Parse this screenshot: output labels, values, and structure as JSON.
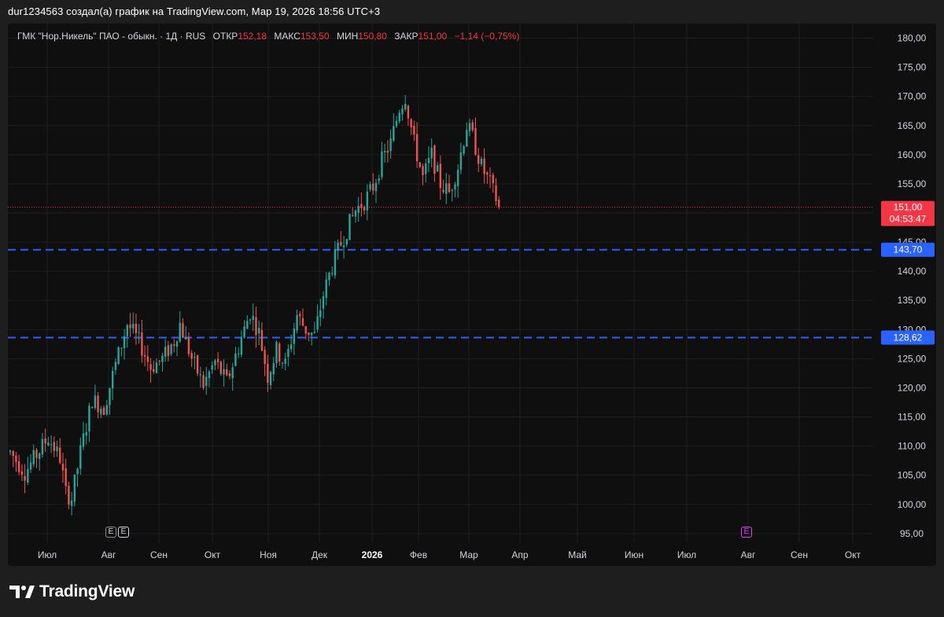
{
  "caption": "dur1234563 создал(а) график на TradingView.com, Мар 19, 2026 18:56 UTC+3",
  "legend": {
    "symbol": "ГМК \"Нор.Никель\" ПАО - обыкн.",
    "sep1": "·",
    "interval": "1Д",
    "sep2": "·",
    "exchange": "RUS",
    "open_label": "ОТКР",
    "open_value": "152,18",
    "high_label": "МАКС",
    "high_value": "153,50",
    "low_label": "МИН",
    "low_value": "150,80",
    "close_label": "ЗАКР",
    "close_value": "151,00",
    "change": "−1,14 (−0,75%)"
  },
  "price_tag": {
    "price": "151,00",
    "countdown": "04:53:47",
    "color": "#f23645"
  },
  "horizontal_lines": [
    {
      "label": "143,70",
      "value": 143.7,
      "color": "#2962ff"
    },
    {
      "label": "128,62",
      "value": 128.62,
      "color": "#2962ff"
    }
  ],
  "events": [
    {
      "label": "E",
      "label_shadow": "E",
      "type": "earnings-past"
    },
    {
      "label": "E",
      "type": "earnings-upcoming",
      "color": "#e040fb"
    }
  ],
  "brand": {
    "name": "TradingView"
  },
  "colors": {
    "up": "#26a69a",
    "down": "#ef5350",
    "grid": "#1f1f1f",
    "background": "#0f0f0f"
  },
  "chart_data": {
    "type": "candlestick",
    "y_axis": {
      "ticks": [
        "180,00",
        "175,00",
        "170,00",
        "165,00",
        "160,00",
        "155,00",
        "150,00",
        "145,00",
        "140,00",
        "135,00",
        "130,00",
        "125,00",
        "120,00",
        "115,00",
        "110,00",
        "105,00",
        "100,00",
        "95,00"
      ],
      "ylim": [
        93.5,
        182.5
      ]
    },
    "x_axis": {
      "ticks": [
        {
          "label": "Июл",
          "bold": false
        },
        {
          "label": "Авг",
          "bold": false
        },
        {
          "label": "Сен",
          "bold": false
        },
        {
          "label": "Окт",
          "bold": false
        },
        {
          "label": "Ноя",
          "bold": false
        },
        {
          "label": "Дек",
          "bold": false
        },
        {
          "label": "2026",
          "bold": true
        },
        {
          "label": "Фев",
          "bold": false
        },
        {
          "label": "Мар",
          "bold": false
        },
        {
          "label": "Апр",
          "bold": false
        },
        {
          "label": "Май",
          "bold": false
        },
        {
          "label": "Июн",
          "bold": false
        },
        {
          "label": "Июл",
          "bold": false
        },
        {
          "label": "Авг",
          "bold": false
        },
        {
          "label": "Сен",
          "bold": false
        },
        {
          "label": "Окт",
          "bold": false
        }
      ]
    },
    "last_close": 151.0,
    "trend_keypoints": [
      [
        0,
        109.0
      ],
      [
        5,
        105.5
      ],
      [
        9,
        108.5
      ],
      [
        13,
        111.5
      ],
      [
        17,
        108.0
      ],
      [
        19,
        102.0
      ],
      [
        21,
        101.0
      ],
      [
        24,
        109.0
      ],
      [
        28,
        118.0
      ],
      [
        32,
        116.5
      ],
      [
        36,
        124.0
      ],
      [
        40,
        131.0
      ],
      [
        44,
        128.0
      ],
      [
        48,
        123.5
      ],
      [
        52,
        125.0
      ],
      [
        56,
        128.0
      ],
      [
        58,
        131.0
      ],
      [
        62,
        125.0
      ],
      [
        66,
        120.5
      ],
      [
        70,
        124.5
      ],
      [
        74,
        121.0
      ],
      [
        78,
        127.0
      ],
      [
        82,
        133.0
      ],
      [
        85,
        129.5
      ],
      [
        88,
        122.0
      ],
      [
        91,
        126.5
      ],
      [
        94,
        124.0
      ],
      [
        98,
        132.5
      ],
      [
        101,
        130.0
      ],
      [
        104,
        129.0
      ],
      [
        107,
        136.0
      ],
      [
        110,
        141.0
      ],
      [
        114,
        146.0
      ],
      [
        118,
        150.5
      ],
      [
        121,
        152.0
      ],
      [
        124,
        154.5
      ],
      [
        127,
        159.0
      ],
      [
        130,
        162.0
      ],
      [
        133,
        168.0
      ],
      [
        135,
        170.0
      ],
      [
        138,
        162.0
      ],
      [
        141,
        156.0
      ],
      [
        144,
        160.0
      ],
      [
        147,
        155.0
      ],
      [
        150,
        153.5
      ],
      [
        153,
        158.0
      ],
      [
        156,
        165.0
      ],
      [
        158,
        163.0
      ],
      [
        161,
        158.0
      ],
      [
        164,
        155.0
      ],
      [
        166,
        152.5
      ],
      [
        167,
        151.0
      ]
    ]
  }
}
